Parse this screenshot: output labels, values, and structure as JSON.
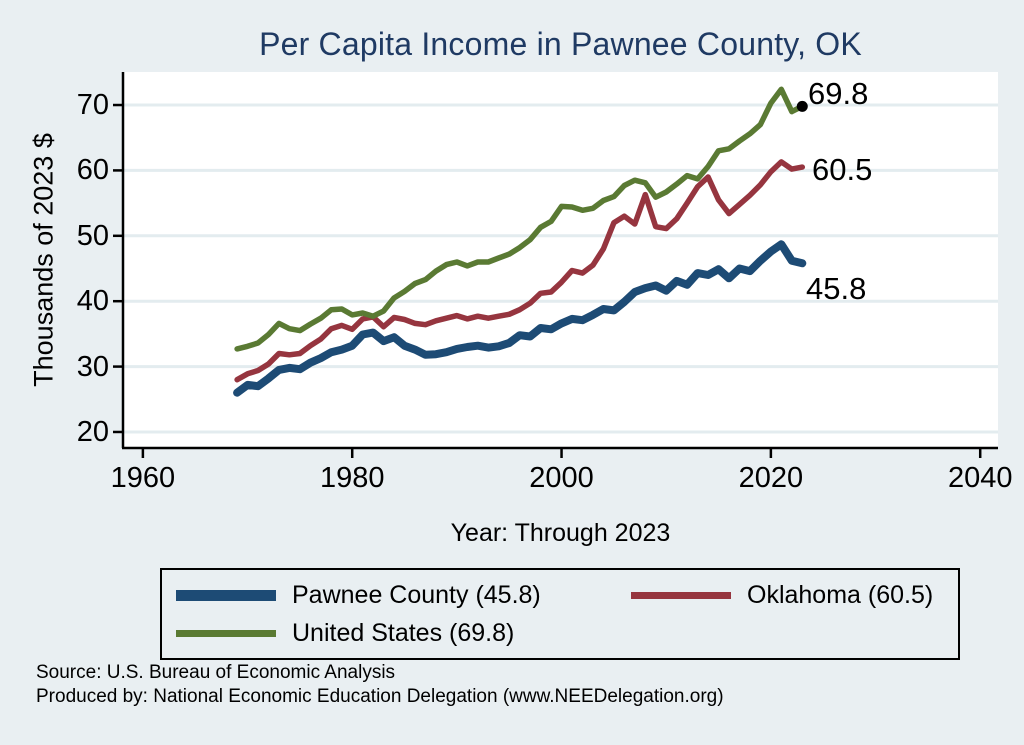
{
  "page": {
    "background": "#e9eff2"
  },
  "header": {
    "title": "Per Capita Income in Pawnee County, OK",
    "title_color": "#1f3a63"
  },
  "chart_data": {
    "type": "line",
    "title": "Per Capita Income in Pawnee County, OK",
    "xlabel": "Year: Through 2023",
    "ylabel": "Thousands of 2023 $",
    "x_ticks": [
      1960,
      1980,
      2000,
      2020,
      2040
    ],
    "y_ticks": [
      20,
      30,
      40,
      50,
      60,
      70
    ],
    "x_range": [
      1958.1,
      2041.7
    ],
    "y_range": [
      17.55,
      75.05
    ],
    "grid": "horizontal",
    "legend_position": "bottom",
    "years": [
      1969,
      1970,
      1971,
      1972,
      1973,
      1974,
      1975,
      1976,
      1977,
      1978,
      1979,
      1980,
      1981,
      1982,
      1983,
      1984,
      1985,
      1986,
      1987,
      1988,
      1989,
      1990,
      1991,
      1992,
      1993,
      1994,
      1995,
      1996,
      1997,
      1998,
      1999,
      2000,
      2001,
      2002,
      2003,
      2004,
      2005,
      2006,
      2007,
      2008,
      2009,
      2010,
      2011,
      2012,
      2013,
      2014,
      2015,
      2016,
      2017,
      2018,
      2019,
      2020,
      2021,
      2022,
      2023
    ],
    "series": [
      {
        "name": "Pawnee County",
        "legend_label": "Pawnee County (45.8)",
        "end_label": "45.8",
        "final_value": 45.8,
        "color": "#1d4b75",
        "line_width": 8,
        "end_marker": false,
        "values": [
          26.0,
          27.2,
          27.0,
          28.2,
          29.5,
          29.8,
          29.6,
          30.6,
          31.3,
          32.2,
          32.6,
          33.2,
          34.9,
          35.2,
          33.9,
          34.5,
          33.2,
          32.6,
          31.8,
          31.9,
          32.2,
          32.7,
          33.0,
          33.2,
          32.9,
          33.1,
          33.6,
          34.8,
          34.6,
          35.9,
          35.7,
          36.6,
          37.3,
          37.1,
          37.9,
          38.8,
          38.6,
          39.9,
          41.4,
          42.0,
          42.4,
          41.6,
          43.1,
          42.5,
          44.3,
          44.0,
          44.9,
          43.5,
          45.0,
          44.6,
          46.2,
          47.6,
          48.7,
          46.2,
          45.8
        ]
      },
      {
        "name": "Oklahoma",
        "legend_label": "Oklahoma (60.5)",
        "end_label": "60.5",
        "final_value": 60.5,
        "color": "#96353f",
        "line_width": 5.5,
        "end_marker": false,
        "values": [
          28.0,
          28.9,
          29.4,
          30.4,
          32.0,
          31.8,
          32.0,
          33.2,
          34.2,
          35.8,
          36.3,
          35.7,
          37.3,
          37.6,
          36.1,
          37.5,
          37.2,
          36.6,
          36.4,
          37.0,
          37.4,
          37.8,
          37.3,
          37.7,
          37.4,
          37.7,
          38.0,
          38.7,
          39.7,
          41.2,
          41.4,
          42.9,
          44.7,
          44.3,
          45.5,
          48.0,
          52.0,
          53.0,
          51.8,
          56.3,
          51.4,
          51.1,
          52.6,
          55.0,
          57.5,
          59.0,
          55.5,
          53.4,
          54.8,
          56.2,
          57.8,
          59.8,
          61.3,
          60.2,
          60.5
        ]
      },
      {
        "name": "United States",
        "legend_label": "United States (69.8)",
        "end_label": "69.8",
        "final_value": 69.8,
        "color": "#5a7a33",
        "line_width": 5.5,
        "end_marker": true,
        "marker_color": "#000000",
        "values": [
          32.7,
          33.1,
          33.6,
          34.9,
          36.6,
          35.8,
          35.5,
          36.5,
          37.4,
          38.7,
          38.8,
          37.9,
          38.2,
          37.7,
          38.5,
          40.5,
          41.5,
          42.7,
          43.3,
          44.6,
          45.6,
          46.0,
          45.4,
          46.0,
          46.0,
          46.6,
          47.2,
          48.2,
          49.4,
          51.3,
          52.2,
          54.5,
          54.4,
          53.9,
          54.2,
          55.4,
          56.0,
          57.7,
          58.5,
          58.1,
          55.9,
          56.7,
          57.9,
          59.2,
          58.7,
          60.6,
          63.0,
          63.3,
          64.5,
          65.6,
          67.0,
          70.3,
          72.4,
          69.0,
          69.8
        ]
      }
    ],
    "style": {
      "plot_bg": "#ffffff",
      "grid_color": "#e3ecef",
      "axis_color": "#000000",
      "tick_color": "#000000"
    }
  },
  "footer": {
    "source_line1": "Source: U.S. Bureau of Economic Analysis",
    "source_line2": "Produced by: National Economic Education Delegation (www.NEEDelegation.org)"
  }
}
